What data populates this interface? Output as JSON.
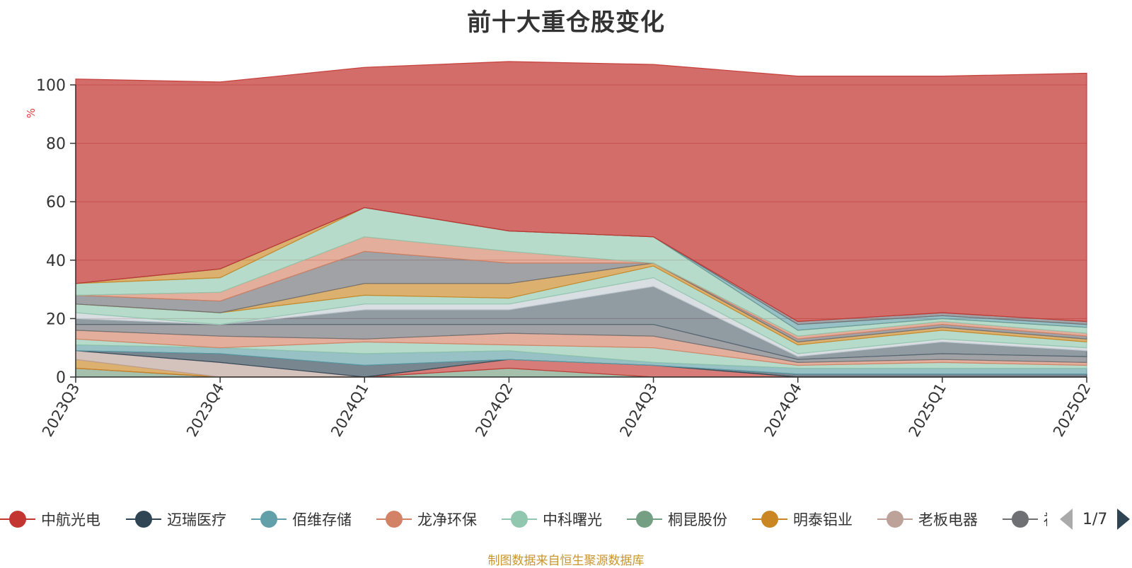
{
  "chart_data": {
    "type": "area",
    "stacked": true,
    "title": "前十大重仓股变化",
    "ylabel": "%",
    "xlabel": "",
    "ylim": [
      0,
      100
    ],
    "yticks": [
      0,
      20,
      40,
      60,
      80,
      100
    ],
    "grid": true,
    "legend_position": "bottom",
    "categories": [
      "2023Q3",
      "2023Q4",
      "2024Q1",
      "2024Q2",
      "2024Q3",
      "2024Q4",
      "2025Q1",
      "2025Q2"
    ],
    "series": [
      {
        "name": "桐昆股份",
        "color": "#749f83",
        "values": [
          3,
          0,
          0,
          3,
          0,
          0,
          0,
          0
        ]
      },
      {
        "name": "中航光电",
        "color": "#c23531",
        "values": [
          0,
          0,
          0,
          3,
          4,
          0,
          0,
          0
        ]
      },
      {
        "name": "明泰铝业",
        "color": "#ca8622",
        "values": [
          3,
          0,
          0,
          0,
          0,
          0,
          0,
          0
        ]
      },
      {
        "name": "老板电器",
        "color": "#bda29a",
        "values": [
          3,
          5,
          0,
          0,
          0,
          0,
          0,
          0
        ]
      },
      {
        "name": "迈瑞医疗",
        "color": "#2f4554",
        "values": [
          0,
          3,
          4,
          0,
          0,
          1,
          1,
          1
        ]
      },
      {
        "name": "佰维存储",
        "color": "#61a0a8",
        "values": [
          2,
          2,
          4,
          3,
          1,
          2,
          2,
          2
        ]
      },
      {
        "name": "中科曙光",
        "color": "#91c7ae",
        "values": [
          2,
          0,
          4,
          2,
          5,
          1,
          2,
          1
        ]
      },
      {
        "name": "龙净环保",
        "color": "#d48265",
        "values": [
          3,
          4,
          1,
          4,
          4,
          1,
          1,
          1
        ]
      },
      {
        "name": "",
        "color": "#6e7074",
        "values": [
          2,
          4,
          5,
          3,
          4,
          1,
          2,
          2
        ]
      },
      {
        "name": "",
        "color": "#546570",
        "values": [
          2,
          0,
          5,
          5,
          13,
          1,
          4,
          2
        ]
      },
      {
        "name": "",
        "color": "#c4ccd3",
        "values": [
          2,
          0,
          2,
          2,
          3,
          1,
          1,
          1
        ]
      },
      {
        "name": "",
        "color": "#91c7ae",
        "values": [
          3,
          4,
          3,
          2,
          4,
          3,
          3,
          2
        ]
      },
      {
        "name": "",
        "color": "#ca8622",
        "values": [
          0,
          0,
          4,
          5,
          1,
          1,
          1,
          1
        ]
      },
      {
        "name": "",
        "color": "#6e7074",
        "values": [
          3,
          4,
          11,
          7,
          0,
          1,
          1,
          1
        ]
      },
      {
        "name": "",
        "color": "#d48265",
        "values": [
          0,
          3,
          5,
          4,
          0,
          1,
          1,
          1
        ]
      },
      {
        "name": "",
        "color": "#91c7ae",
        "values": [
          4,
          5,
          10,
          7,
          9,
          2,
          1,
          2
        ]
      },
      {
        "name": "",
        "color": "#ca8622",
        "values": [
          0,
          3,
          0,
          0,
          0,
          0,
          0,
          0
        ]
      },
      {
        "name": "",
        "color": "#61a0a8",
        "values": [
          0,
          0,
          0,
          0,
          0,
          2,
          1,
          1
        ]
      },
      {
        "name": "",
        "color": "#6e7074",
        "values": [
          0,
          0,
          0,
          0,
          0,
          1,
          1,
          1
        ]
      },
      {
        "name": "中航光电",
        "color": "#c23531",
        "values": [
          70,
          64,
          48,
          58,
          59,
          84,
          81,
          85
        ]
      }
    ]
  },
  "legend": {
    "items": [
      {
        "label": "中航光电",
        "color": "#c23531"
      },
      {
        "label": "迈瑞医疗",
        "color": "#2f4554"
      },
      {
        "label": "佰维存储",
        "color": "#61a0a8"
      },
      {
        "label": "龙净环保",
        "color": "#d48265"
      },
      {
        "label": "中科曙光",
        "color": "#91c7ae"
      },
      {
        "label": "桐昆股份",
        "color": "#749f83"
      },
      {
        "label": "明泰铝业",
        "color": "#ca8622"
      },
      {
        "label": "老板电器",
        "color": "#bda29a"
      },
      {
        "label": "福",
        "color": "#6e7074"
      }
    ],
    "page": "1/7"
  },
  "source_note": "制图数据来自恒生聚源数据库"
}
